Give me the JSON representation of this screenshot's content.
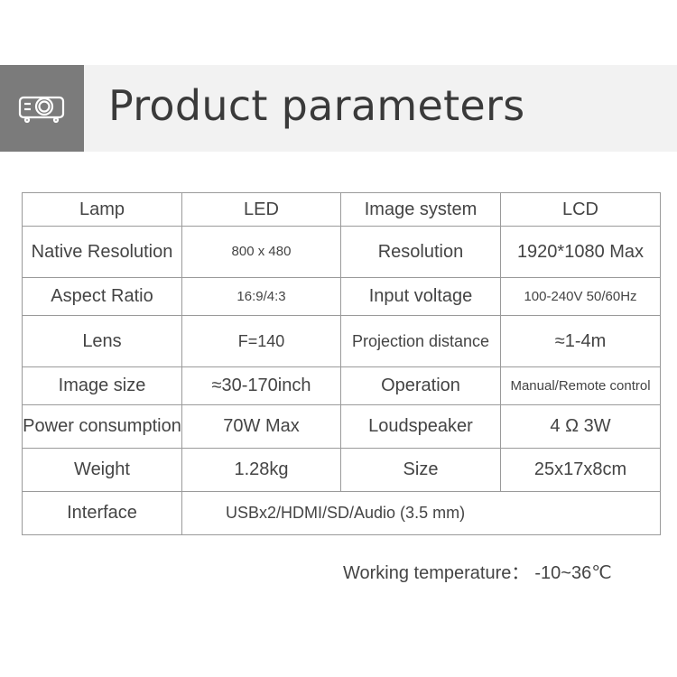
{
  "header": {
    "title": "Product parameters",
    "icon": "projector-icon"
  },
  "rows": [
    [
      "Lamp",
      "LED",
      "Image system",
      "LCD"
    ],
    [
      "Native Resolution",
      "800 x 480",
      "Resolution",
      "1920*1080 Max"
    ],
    [
      "Aspect Ratio",
      "16:9/4:3",
      "Input voltage",
      "100-240V  50/60Hz"
    ],
    [
      "Lens",
      "F=140",
      "Projection  distance",
      "≈1-4m"
    ],
    [
      "Image size",
      "≈30-170inch",
      "Operation",
      "Manual/Remote control"
    ],
    [
      "Power consumption",
      "70W Max",
      "Loudspeaker",
      "4 Ω 3W"
    ],
    [
      "Weight",
      "1.28kg",
      "Size",
      "25x17x8cm"
    ]
  ],
  "interface": {
    "label": "Interface",
    "value": "USBx2/HDMI/SD/Audio (3.5 mm)"
  },
  "footer": {
    "label": "Working  temperature：",
    "value": "-10~36℃"
  }
}
